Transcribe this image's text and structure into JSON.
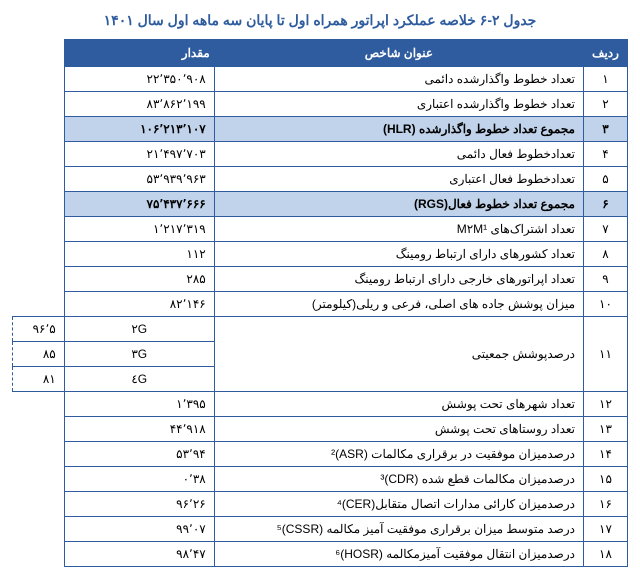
{
  "title_color": "#2e5c9e",
  "header_bg": "#2e5c9e",
  "highlight_bg": "#c1d3ea",
  "title": "جدول ۲-۶ خلاصه عملکرد اپراتور همراه اول تا پایان سه ماهه اول سال ۱۴۰۱",
  "headers": {
    "idx": "ردیف",
    "name": "عنوان شاخص",
    "val": "مقدار"
  },
  "rows": [
    {
      "idx": "۱",
      "name": "تعداد خطوط واگذارشده دائمی",
      "val": "۲۲٬۳۵۰٬۹۰۸"
    },
    {
      "idx": "۲",
      "name": "تعداد خطوط واگذارشده اعتباری",
      "val": "۸۳٬۸۶۲٬۱۹۹"
    },
    {
      "idx": "۳",
      "name": "مجموع تعداد خطوط واگذارشده (HLR)",
      "val": "۱۰۶٬۲۱۳٬۱۰۷",
      "hl": true
    },
    {
      "idx": "۴",
      "name": "تعدادخطوط  فعال دائمی",
      "val": "۲۱٬۴۹۷٬۷۰۳"
    },
    {
      "idx": "۵",
      "name": "تعدادخطوط فعال اعتباری",
      "val": "۵۳٬۹۳۹٬۹۶۳"
    },
    {
      "idx": "۶",
      "name": "مجموع تعداد خطوط  فعال(RGS)",
      "val": "۷۵٬۴۳۷٬۶۶۶",
      "hl": true
    },
    {
      "idx": "۷",
      "name": "تعداد اشتراک‌های M۲M¹",
      "val": "۱٬۲۱۷٬۳۱۹"
    },
    {
      "idx": "۸",
      "name": "تعداد کشورهای دارای ارتباط رومینگ",
      "val": "۱۱۲"
    },
    {
      "idx": "۹",
      "name": "تعداد اپراتورهای خارجی دارای ارتباط رومینگ",
      "val": "۲۸۵"
    },
    {
      "idx": "۱۰",
      "name": "میزان پوشش جاده های اصلی، فرعی و ریلی(کیلومتر)",
      "val": "۸۲٬۱۴۶"
    },
    {
      "idx": "۱۲",
      "name": "تعداد شهرهای تحت پوشش",
      "val": "۱٬۳۹۵"
    },
    {
      "idx": "۱۳",
      "name": "تعداد روستاهای تحت پوشش",
      "val": "۴۴٬۹۱۸"
    },
    {
      "idx": "۱۴",
      "name": "درصدمیزان موفقیت در برقراری مکالمات (ASR)²",
      "val": "۵۳٬۹۴"
    },
    {
      "idx": "۱۵",
      "name": "درصدمیزان مکالمات قطع شده (CDR)³",
      "val": "۰٬۳۸"
    },
    {
      "idx": "۱۶",
      "name": "درصدمیزان کارائی مدارات اتصال متقابل(CER)⁴",
      "val": "۹۶٬۲۶"
    },
    {
      "idx": "۱۷",
      "name": "درصد متوسط میزان برقراری موفقیت آمیز مکالمه (CSSR)⁵",
      "val": "۹۹٬۰۷"
    },
    {
      "idx": "۱۸",
      "name": "درصدمیزان انتقال موفقیت آمیزمکالمه (HOSR)⁶",
      "val": "۹۸٬۴۷"
    }
  ],
  "row11": {
    "idx": "۱۱",
    "name": "درصدپوشش جمعیتی",
    "subs": [
      {
        "tech": "۲G",
        "val": "۹۶٬۵"
      },
      {
        "tech": "۳G",
        "val": "۸۵"
      },
      {
        "tech": "٤G",
        "val": "۸۱"
      }
    ]
  }
}
